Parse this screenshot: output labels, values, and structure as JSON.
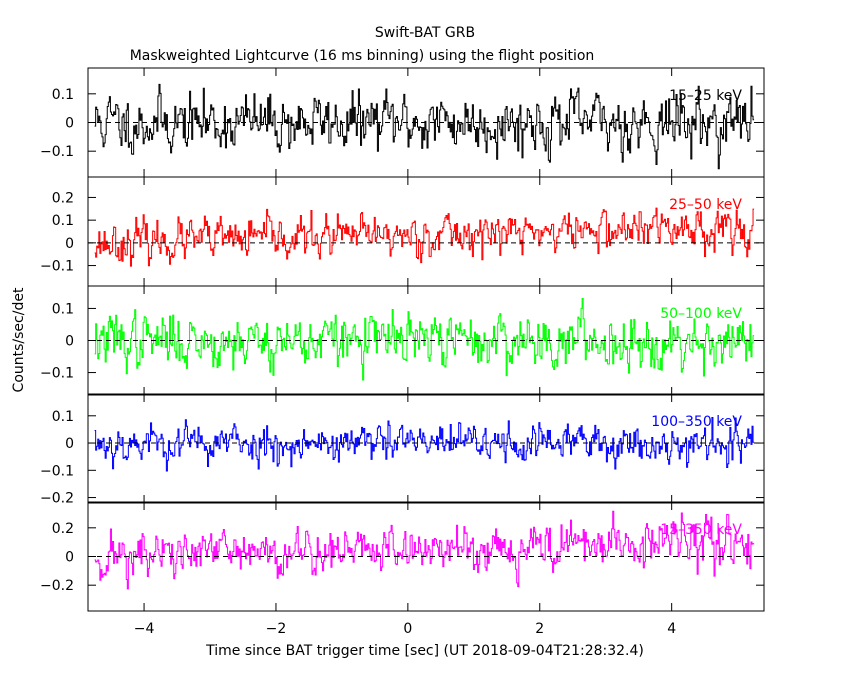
{
  "chart_data": {
    "type": "line",
    "title": "Swift-BAT GRB",
    "subtitle": "Maskweighted Lightcurve (16 ms binning) using the flight position",
    "xlabel": "Time since BAT trigger time [sec] (UT 2018-09-04T21:28:32.4)",
    "ylabel": "Counts/sec/det",
    "xlim": [
      -4.85,
      5.4
    ],
    "x_ticks": [
      -4,
      -2,
      0,
      2,
      4
    ],
    "x_tick_labels": [
      "−4",
      "−2",
      "0",
      "2",
      "4"
    ],
    "x_start": -4.75,
    "x_end": 5.25,
    "bin_seconds": 0.016,
    "panels": [
      {
        "name": "15–25 keV",
        "color": "#000000",
        "ylim": [
          -0.19,
          0.19
        ],
        "y_ticks": [
          -0.1,
          0,
          0.1
        ],
        "y_tick_labels": [
          "−0.1",
          "0",
          "0.1"
        ],
        "noise_amplitude": 0.085,
        "trend_slope": 0.0,
        "seed": 11
      },
      {
        "name": "25–50 keV",
        "color": "#ff0000",
        "ylim": [
          -0.19,
          0.29
        ],
        "y_ticks": [
          -0.1,
          0,
          0.1,
          0.2
        ],
        "y_tick_labels": [
          "−0.1",
          "0",
          "0.1",
          "0.2"
        ],
        "noise_amplitude": 0.075,
        "trend_slope": 0.004,
        "seed": 23
      },
      {
        "name": "50–100 keV",
        "color": "#00ff00",
        "ylim": [
          -0.17,
          0.17
        ],
        "y_ticks": [
          -0.1,
          0,
          0.1
        ],
        "y_tick_labels": [
          "−0.1",
          "0",
          "0.1"
        ],
        "noise_amplitude": 0.07,
        "trend_slope": 0.0,
        "seed": 37
      },
      {
        "name": "100–350 keV",
        "color": "#0000ff",
        "ylim": [
          -0.22,
          0.18
        ],
        "y_ticks": [
          -0.2,
          -0.1,
          0,
          0.1
        ],
        "y_tick_labels": [
          "−0.2",
          "−0.1",
          "0",
          "0.1"
        ],
        "noise_amplitude": 0.06,
        "trend_slope": 0.0,
        "seed": 53
      },
      {
        "name": "15–350 keV",
        "color": "#ff00ff",
        "ylim": [
          -0.38,
          0.38
        ],
        "y_ticks": [
          -0.2,
          0,
          0.2
        ],
        "y_tick_labels": [
          "−0.2",
          "0",
          "0.2"
        ],
        "noise_amplitude": 0.14,
        "trend_slope": 0.006,
        "seed": 71
      }
    ]
  }
}
